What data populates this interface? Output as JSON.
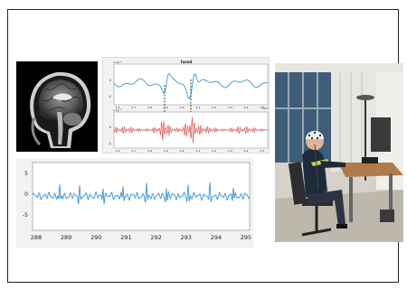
{
  "figure": {
    "mid_panel": {
      "title": "fused",
      "top_plot": {
        "exponent_label": "x 10⁻³",
        "y_ticks": [
          "0",
          "-2"
        ],
        "x_ticks": [
          "1.6",
          "1.7",
          "1.8",
          "1.9",
          "2.0",
          "2.1",
          "2.2",
          "2.3",
          "2.4",
          "2.5"
        ],
        "x_exponent": "x10⁴",
        "color": "#4a9fd8"
      },
      "bottom_plot": {
        "exponent_label": "x 10⁻³",
        "y_ticks": [
          "0",
          "-2"
        ],
        "x_ticks": [
          "1.6",
          "1.7",
          "1.8",
          "1.9",
          "2.0",
          "2.1",
          "2.2",
          "2.3",
          "2.4",
          "2.5"
        ],
        "color": "#e05a5a"
      }
    },
    "big_plot": {
      "y_ticks": [
        "5",
        "0",
        "-5"
      ],
      "x_ticks": [
        "288",
        "289",
        "290",
        "291",
        "292",
        "293",
        "294",
        "295"
      ],
      "color": "#4a9fd8"
    },
    "mri_image": {
      "description_icon": "brain-mri-sagittal-icon"
    },
    "photo": {
      "description_icon": "person-wearing-eeg-cap-at-desk-icon"
    }
  }
}
